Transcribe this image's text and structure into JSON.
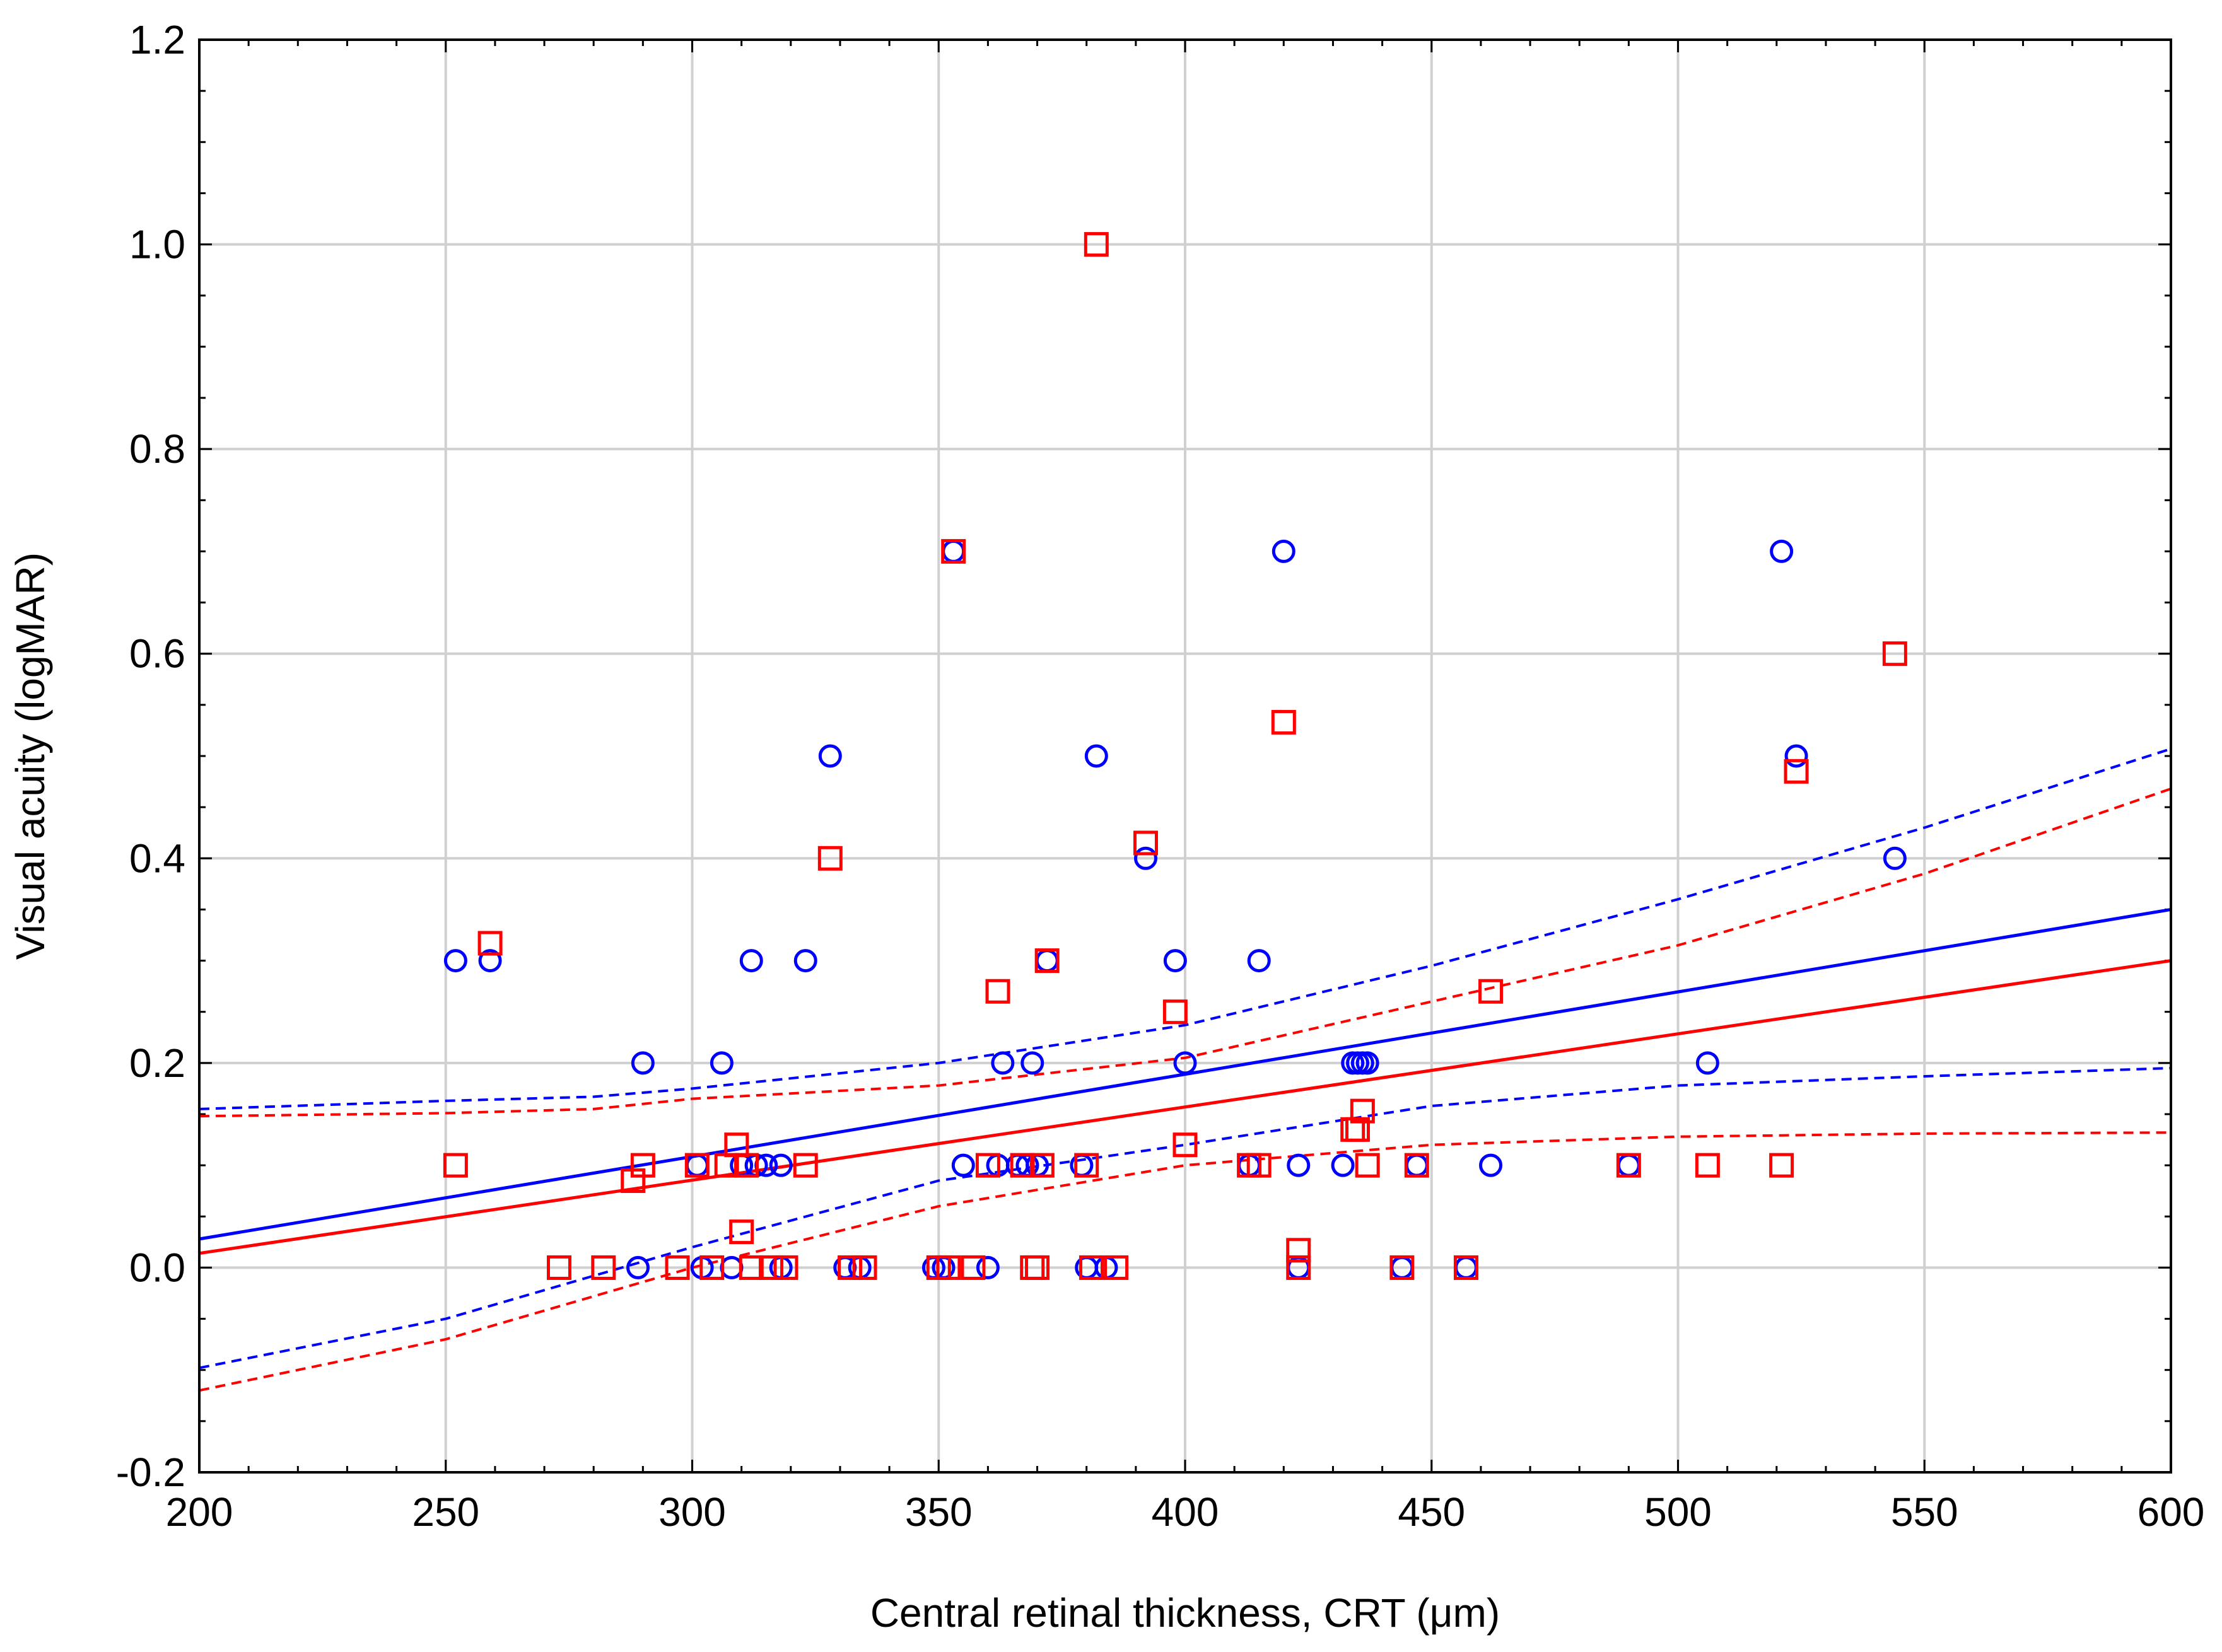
{
  "chart_data": {
    "type": "scatter",
    "title": "",
    "xlabel": "Central retinal thickness, CRT (μm)",
    "ylabel": "Visual acuity (logMAR)",
    "xlim": [
      200,
      600
    ],
    "ylim": [
      -0.2,
      1.2
    ],
    "xticks": [
      200,
      250,
      300,
      350,
      400,
      450,
      500,
      550,
      600
    ],
    "yticks": [
      -0.2,
      0.0,
      0.2,
      0.4,
      0.6,
      0.8,
      1.0,
      1.2
    ],
    "xtick_labels": [
      "200",
      "250",
      "300",
      "350",
      "400",
      "450",
      "500",
      "550",
      "600"
    ],
    "ytick_labels": [
      "-0.2",
      "0.0",
      "0.2",
      "0.4",
      "0.6",
      "0.8",
      "1.0",
      "1.2"
    ],
    "grid": true,
    "series": [
      {
        "name": "circles",
        "marker": "circle",
        "color": "#0000ff",
        "points": [
          [
            252,
            0.3
          ],
          [
            259,
            0.3
          ],
          [
            289,
            0.0
          ],
          [
            290,
            0.2
          ],
          [
            301,
            0.1
          ],
          [
            302,
            0.0
          ],
          [
            306,
            0.2
          ],
          [
            308,
            0.0
          ],
          [
            310,
            0.1
          ],
          [
            312,
            0.3
          ],
          [
            313,
            0.1
          ],
          [
            315,
            0.1
          ],
          [
            318,
            0.1
          ],
          [
            318,
            0.0
          ],
          [
            323,
            0.3
          ],
          [
            328,
            0.5
          ],
          [
            331,
            0.0
          ],
          [
            334,
            0.0
          ],
          [
            349,
            0.0
          ],
          [
            351,
            0.0
          ],
          [
            353,
            0.7
          ],
          [
            355,
            0.1
          ],
          [
            360,
            0.0
          ],
          [
            362,
            0.1
          ],
          [
            363,
            0.2
          ],
          [
            366,
            0.1
          ],
          [
            368,
            0.1
          ],
          [
            369,
            0.2
          ],
          [
            370,
            0.1
          ],
          [
            372,
            0.3
          ],
          [
            379,
            0.1
          ],
          [
            380,
            0.0
          ],
          [
            382,
            0.5
          ],
          [
            384,
            0.0
          ],
          [
            392,
            0.4
          ],
          [
            398,
            0.3
          ],
          [
            400,
            0.2
          ],
          [
            413,
            0.1
          ],
          [
            415,
            0.3
          ],
          [
            420,
            0.7
          ],
          [
            423,
            0.1
          ],
          [
            423,
            0.0
          ],
          [
            432,
            0.1
          ],
          [
            434,
            0.2
          ],
          [
            435,
            0.2
          ],
          [
            436,
            0.2
          ],
          [
            437,
            0.2
          ],
          [
            444,
            0.0
          ],
          [
            447,
            0.1
          ],
          [
            457,
            0.0
          ],
          [
            462,
            0.1
          ],
          [
            490,
            0.1
          ],
          [
            506,
            0.2
          ],
          [
            521,
            0.7
          ],
          [
            524,
            0.5
          ],
          [
            544,
            0.4
          ]
        ]
      },
      {
        "name": "squares",
        "marker": "square",
        "color": "#ff0000",
        "points": [
          [
            252,
            0.1
          ],
          [
            259,
            0.317
          ],
          [
            273,
            0.0
          ],
          [
            282,
            0.0
          ],
          [
            288,
            0.085
          ],
          [
            290,
            0.1
          ],
          [
            297,
            0.0
          ],
          [
            301,
            0.1
          ],
          [
            304,
            0.0
          ],
          [
            307,
            0.1
          ],
          [
            309,
            0.12
          ],
          [
            310,
            0.035
          ],
          [
            311,
            0.1
          ],
          [
            312,
            0.0
          ],
          [
            316,
            0.0
          ],
          [
            319,
            0.0
          ],
          [
            323,
            0.1
          ],
          [
            328,
            0.4
          ],
          [
            332,
            0.0
          ],
          [
            335,
            0.0
          ],
          [
            350,
            0.0
          ],
          [
            352,
            0.0
          ],
          [
            353,
            0.7
          ],
          [
            357,
            0.0
          ],
          [
            360,
            0.1
          ],
          [
            362,
            0.27
          ],
          [
            367,
            0.1
          ],
          [
            369,
            0.0
          ],
          [
            370,
            0.0
          ],
          [
            371,
            0.1
          ],
          [
            372,
            0.3
          ],
          [
            380,
            0.1
          ],
          [
            381,
            0.0
          ],
          [
            382,
            1.0
          ],
          [
            386,
            0.0
          ],
          [
            392,
            0.415
          ],
          [
            398,
            0.25
          ],
          [
            400,
            0.12
          ],
          [
            413,
            0.1
          ],
          [
            415,
            0.1
          ],
          [
            420,
            0.533
          ],
          [
            423,
            0.017
          ],
          [
            423,
            0.0
          ],
          [
            434,
            0.135
          ],
          [
            435,
            0.135
          ],
          [
            436,
            0.153
          ],
          [
            437,
            0.1
          ],
          [
            444,
            0.0
          ],
          [
            447,
            0.1
          ],
          [
            457,
            0.0
          ],
          [
            462,
            0.27
          ],
          [
            490,
            0.1
          ],
          [
            506,
            0.1
          ],
          [
            521,
            0.1
          ],
          [
            524,
            0.485
          ],
          [
            544,
            0.6
          ]
        ]
      }
    ],
    "fits": [
      {
        "name": "blue-fit",
        "color": "#0000ff",
        "line": [
          [
            200,
            0.028
          ],
          [
            600,
            0.35
          ]
        ],
        "ci_upper": [
          [
            200,
            0.155
          ],
          [
            250,
            0.163
          ],
          [
            280,
            0.167
          ],
          [
            300,
            0.175
          ],
          [
            350,
            0.2
          ],
          [
            400,
            0.237
          ],
          [
            450,
            0.295
          ],
          [
            500,
            0.36
          ],
          [
            550,
            0.43
          ],
          [
            600,
            0.507
          ]
        ],
        "ci_lower": [
          [
            200,
            -0.098
          ],
          [
            250,
            -0.05
          ],
          [
            300,
            0.02
          ],
          [
            350,
            0.085
          ],
          [
            400,
            0.12
          ],
          [
            450,
            0.158
          ],
          [
            500,
            0.178
          ],
          [
            550,
            0.187
          ],
          [
            600,
            0.195
          ]
        ]
      },
      {
        "name": "red-fit",
        "color": "#ff0000",
        "line": [
          [
            200,
            0.014
          ],
          [
            600,
            0.3
          ]
        ],
        "ci_upper": [
          [
            200,
            0.148
          ],
          [
            250,
            0.151
          ],
          [
            280,
            0.155
          ],
          [
            300,
            0.165
          ],
          [
            350,
            0.178
          ],
          [
            400,
            0.205
          ],
          [
            450,
            0.26
          ],
          [
            500,
            0.315
          ],
          [
            550,
            0.385
          ],
          [
            600,
            0.468
          ]
        ],
        "ci_lower": [
          [
            200,
            -0.12
          ],
          [
            250,
            -0.07
          ],
          [
            300,
            0.0
          ],
          [
            350,
            0.06
          ],
          [
            400,
            0.1
          ],
          [
            450,
            0.12
          ],
          [
            500,
            0.128
          ],
          [
            550,
            0.131
          ],
          [
            600,
            0.132
          ]
        ]
      }
    ]
  }
}
